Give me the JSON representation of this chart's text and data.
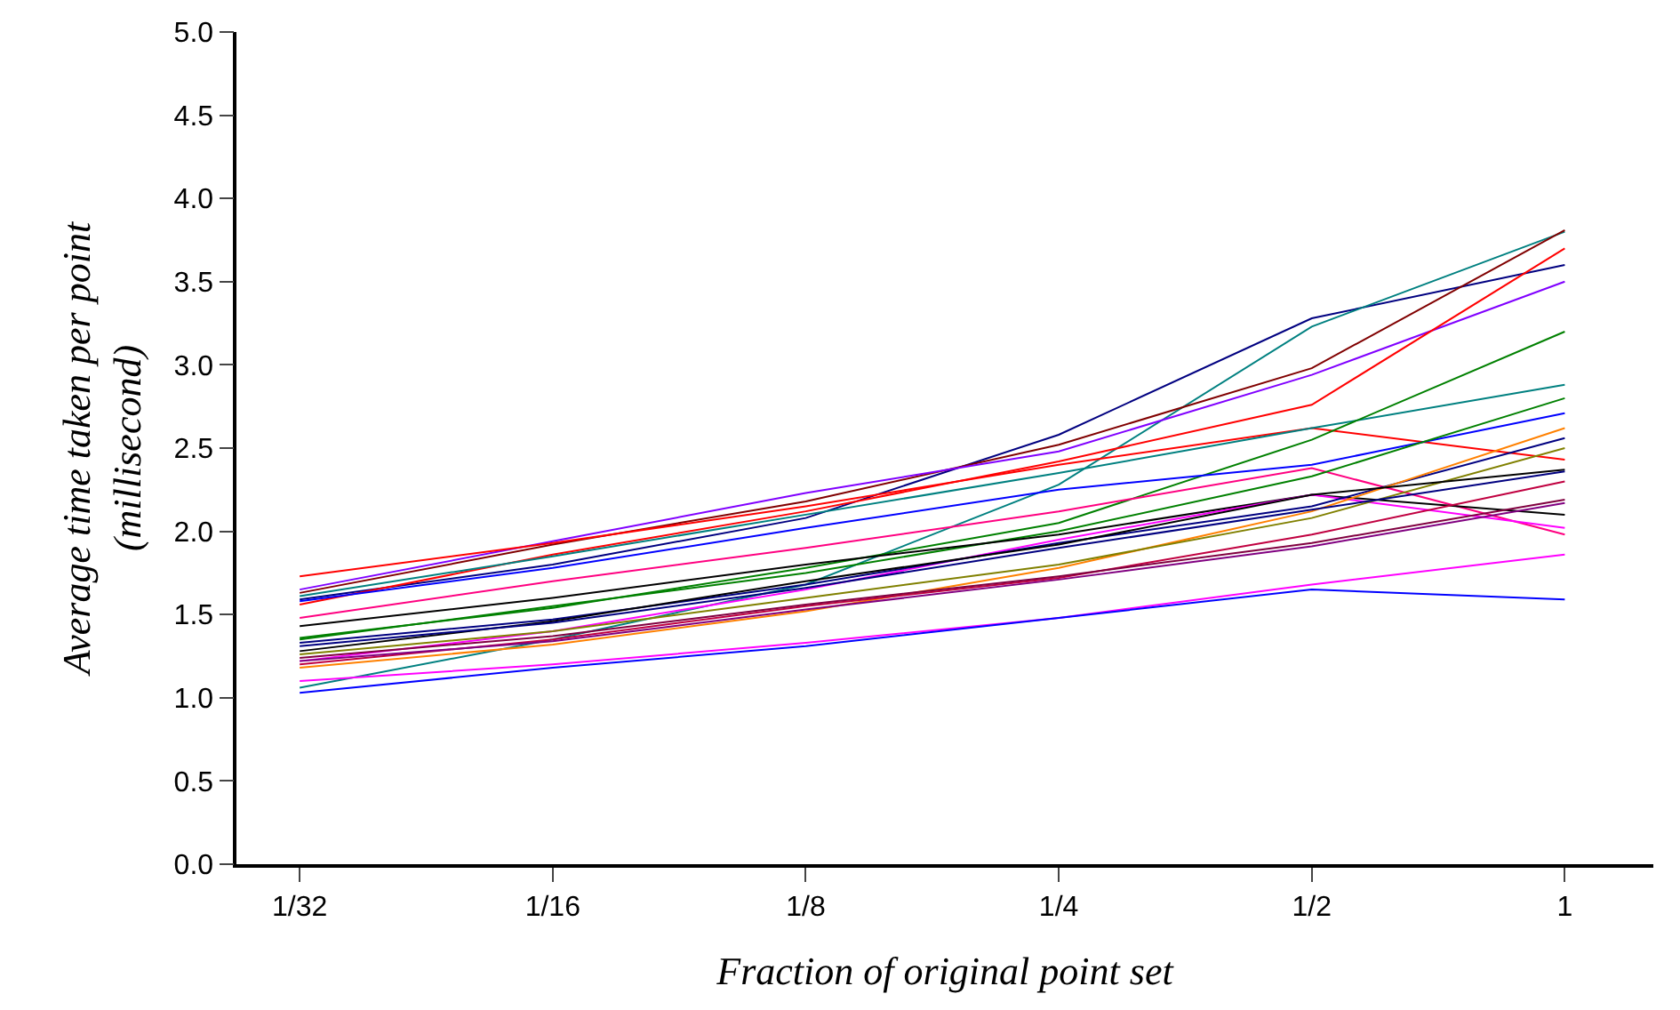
{
  "chart_data": {
    "type": "line",
    "xlabel": "Fraction of original point set",
    "ylabel": "Average time taken per point\n(millisecond)",
    "categories": [
      "1/32",
      "1/16",
      "1/8",
      "1/4",
      "1/2",
      "1"
    ],
    "ylim": [
      0,
      5
    ],
    "yticks": [
      {
        "value": 0,
        "label": "0.0"
      },
      0.5,
      {
        "value": 1,
        "label": "1.0"
      },
      1.5,
      {
        "value": 2,
        "label": "2.0"
      },
      2.5,
      {
        "value": 3,
        "label": "3.0"
      },
      3.5,
      {
        "value": 4,
        "label": "4.0"
      },
      4.5,
      {
        "value": 5,
        "label": "5.0"
      }
    ],
    "marker": "none",
    "line_style": "solid",
    "series": [
      {
        "color": "#000080",
        "values": [
          1.59,
          1.8,
          2.08,
          2.58,
          3.28,
          3.6
        ]
      },
      {
        "color": "#008080",
        "values": [
          1.06,
          1.35,
          1.68,
          2.28,
          3.23,
          3.8
        ]
      },
      {
        "color": "#800000",
        "values": [
          1.63,
          1.92,
          2.18,
          2.52,
          2.98,
          3.81
        ]
      },
      {
        "color": "#8000ff",
        "values": [
          1.65,
          1.94,
          2.23,
          2.48,
          2.94,
          3.5
        ]
      },
      {
        "color": "#ff0000",
        "values": [
          1.56,
          1.86,
          2.12,
          2.42,
          2.76,
          3.7
        ]
      },
      {
        "color": "#ff0000",
        "values": [
          1.73,
          1.93,
          2.15,
          2.4,
          2.62,
          2.43
        ]
      },
      {
        "color": "#008080",
        "values": [
          1.61,
          1.85,
          2.1,
          2.35,
          2.62,
          2.88
        ]
      },
      {
        "color": "#008000",
        "values": [
          1.36,
          1.54,
          1.78,
          2.05,
          2.55,
          3.2
        ]
      },
      {
        "color": "#0000ff",
        "values": [
          1.58,
          1.78,
          2.02,
          2.25,
          2.4,
          2.71
        ]
      },
      {
        "color": "#ff0080",
        "values": [
          1.48,
          1.7,
          1.9,
          2.12,
          2.38,
          1.98
        ]
      },
      {
        "color": "#008000",
        "values": [
          1.35,
          1.55,
          1.75,
          2.0,
          2.33,
          2.8
        ]
      },
      {
        "color": "#000000",
        "values": [
          1.43,
          1.6,
          1.8,
          1.98,
          2.22,
          2.1
        ]
      },
      {
        "color": "#ff00ff",
        "values": [
          1.22,
          1.4,
          1.65,
          1.95,
          2.22,
          2.02
        ]
      },
      {
        "color": "#000080",
        "values": [
          1.33,
          1.47,
          1.68,
          1.93,
          2.15,
          2.56
        ]
      },
      {
        "color": "#ff8000",
        "values": [
          1.18,
          1.32,
          1.52,
          1.78,
          2.12,
          2.62
        ]
      },
      {
        "color": "#808000",
        "values": [
          1.26,
          1.4,
          1.6,
          1.8,
          2.08,
          2.5
        ]
      },
      {
        "color": "#000000",
        "values": [
          1.28,
          1.46,
          1.7,
          1.92,
          2.22,
          2.37
        ]
      },
      {
        "color": "#000080",
        "values": [
          1.31,
          1.45,
          1.66,
          1.9,
          2.13,
          2.36
        ]
      },
      {
        "color": "#c00040",
        "values": [
          1.2,
          1.35,
          1.55,
          1.72,
          1.98,
          2.3
        ]
      },
      {
        "color": "#800040",
        "values": [
          1.24,
          1.37,
          1.56,
          1.73,
          1.93,
          2.19
        ]
      },
      {
        "color": "#800080",
        "values": [
          1.22,
          1.34,
          1.53,
          1.71,
          1.91,
          2.17
        ]
      },
      {
        "color": "#ff00ff",
        "values": [
          1.1,
          1.2,
          1.33,
          1.48,
          1.68,
          1.86
        ]
      },
      {
        "color": "#0000ff",
        "values": [
          1.03,
          1.18,
          1.31,
          1.48,
          1.65,
          1.59
        ]
      }
    ]
  }
}
